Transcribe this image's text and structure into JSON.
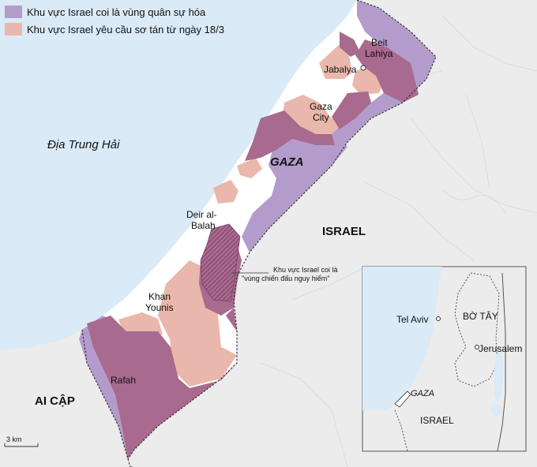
{
  "legend": {
    "items": [
      {
        "label": "Khu vực Israel coi là vùng quân sự hóa",
        "color": "#b39ccc"
      },
      {
        "label": "Khu vực Israel yêu cầu sơ tán từ ngày 18/3",
        "color": "#e9b7ab"
      }
    ]
  },
  "labels": {
    "sea": "Địa Trung Hải",
    "gaza": "GAZA",
    "israel": "ISRAEL",
    "egypt": "AI CẬP",
    "beit_lahiya_1": "Beit",
    "beit_lahiya_2": "Lahiya",
    "jabalya": "Jabalya",
    "gaza_city_1": "Gaza",
    "gaza_city_2": "City",
    "deir_1": "Deir al-",
    "deir_2": "Balah",
    "khan_1": "Khan",
    "khan_2": "Younis",
    "rafah": "Rafah",
    "combat_zone_1": "Khu vực Israel coi là",
    "combat_zone_2": "\"vùng chiến đấu nguy hiểm\"",
    "scale": "3 km"
  },
  "inset": {
    "tel_aviv": "Tel Aviv",
    "west_bank": "BỜ TÂY",
    "jerusalem": "Jerusalem",
    "gaza": "GAZA",
    "israel": "ISRAEL"
  },
  "colors": {
    "sea": "#daeaf7",
    "land": "#ececec",
    "strip": "#ffffff",
    "militarized": "#b39ccc",
    "evacuation": "#e9b7ab",
    "overlap": "#a86a8e",
    "sea_label": "#1d5f93"
  }
}
